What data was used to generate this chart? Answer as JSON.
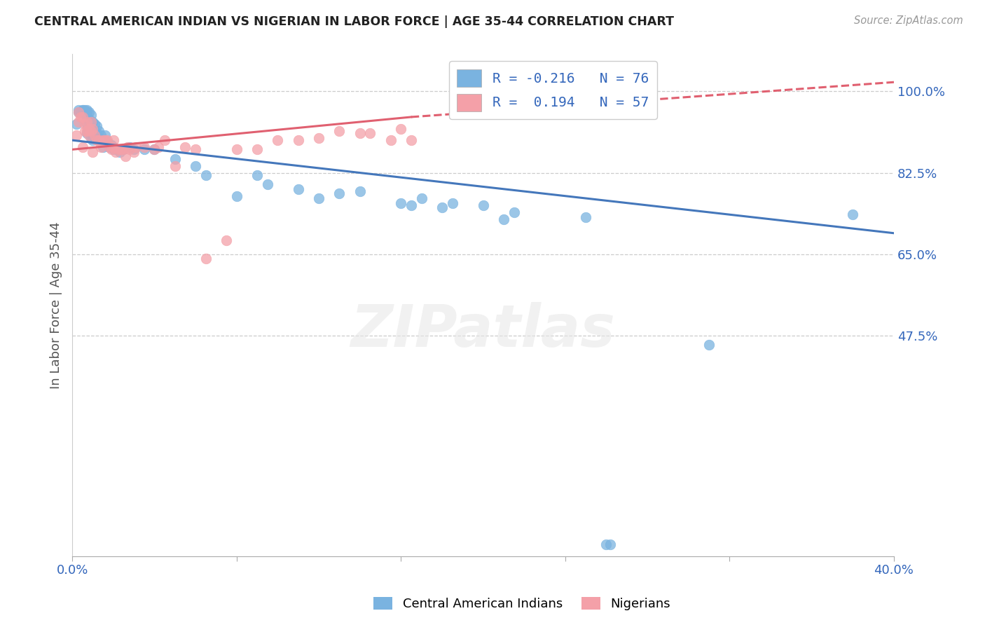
{
  "title": "CENTRAL AMERICAN INDIAN VS NIGERIAN IN LABOR FORCE | AGE 35-44 CORRELATION CHART",
  "source": "Source: ZipAtlas.com",
  "ylabel": "In Labor Force | Age 35-44",
  "watermark": "ZIPatlas",
  "blue_color": "#7ab3e0",
  "pink_color": "#f4a0a8",
  "blue_line_color": "#4477bb",
  "pink_line_color": "#e06070",
  "x_min": 0.0,
  "x_max": 0.4,
  "y_min": 0.0,
  "y_max": 1.08,
  "ytick_positions": [
    0.475,
    0.65,
    0.825,
    1.0
  ],
  "ytick_labels": [
    "47.5%",
    "65.0%",
    "82.5%",
    "100.0%"
  ],
  "grid_lines": [
    0.475,
    0.65,
    0.825,
    1.0
  ],
  "legend_blue": "R = -0.216   N = 76",
  "legend_pink": "R =  0.194   N = 57",
  "blue_trend": [
    0.0,
    0.895,
    0.4,
    0.695
  ],
  "pink_trend_solid": [
    0.0,
    0.875,
    0.165,
    0.945
  ],
  "pink_trend_dashed": [
    0.165,
    0.945,
    0.4,
    1.02
  ],
  "blue_scatter": [
    [
      0.002,
      0.93
    ],
    [
      0.003,
      0.955
    ],
    [
      0.003,
      0.96
    ],
    [
      0.004,
      0.955
    ],
    [
      0.004,
      0.955
    ],
    [
      0.005,
      0.955
    ],
    [
      0.005,
      0.955
    ],
    [
      0.005,
      0.96
    ],
    [
      0.005,
      0.96
    ],
    [
      0.005,
      0.955
    ],
    [
      0.006,
      0.96
    ],
    [
      0.006,
      0.955
    ],
    [
      0.006,
      0.955
    ],
    [
      0.007,
      0.955
    ],
    [
      0.007,
      0.96
    ],
    [
      0.007,
      0.945
    ],
    [
      0.007,
      0.93
    ],
    [
      0.007,
      0.91
    ],
    [
      0.008,
      0.955
    ],
    [
      0.008,
      0.94
    ],
    [
      0.008,
      0.935
    ],
    [
      0.008,
      0.92
    ],
    [
      0.009,
      0.95
    ],
    [
      0.009,
      0.935
    ],
    [
      0.009,
      0.92
    ],
    [
      0.009,
      0.9
    ],
    [
      0.01,
      0.935
    ],
    [
      0.01,
      0.92
    ],
    [
      0.01,
      0.91
    ],
    [
      0.01,
      0.895
    ],
    [
      0.011,
      0.93
    ],
    [
      0.011,
      0.915
    ],
    [
      0.012,
      0.925
    ],
    [
      0.012,
      0.91
    ],
    [
      0.013,
      0.915
    ],
    [
      0.013,
      0.9
    ],
    [
      0.014,
      0.905
    ],
    [
      0.014,
      0.895
    ],
    [
      0.015,
      0.895
    ],
    [
      0.015,
      0.88
    ],
    [
      0.016,
      0.905
    ],
    [
      0.016,
      0.89
    ],
    [
      0.017,
      0.89
    ],
    [
      0.018,
      0.88
    ],
    [
      0.019,
      0.885
    ],
    [
      0.02,
      0.875
    ],
    [
      0.022,
      0.875
    ],
    [
      0.023,
      0.87
    ],
    [
      0.025,
      0.875
    ],
    [
      0.028,
      0.88
    ],
    [
      0.03,
      0.875
    ],
    [
      0.035,
      0.875
    ],
    [
      0.04,
      0.875
    ],
    [
      0.05,
      0.855
    ],
    [
      0.06,
      0.84
    ],
    [
      0.065,
      0.82
    ],
    [
      0.08,
      0.775
    ],
    [
      0.09,
      0.82
    ],
    [
      0.095,
      0.8
    ],
    [
      0.11,
      0.79
    ],
    [
      0.12,
      0.77
    ],
    [
      0.13,
      0.78
    ],
    [
      0.14,
      0.785
    ],
    [
      0.16,
      0.76
    ],
    [
      0.165,
      0.755
    ],
    [
      0.17,
      0.77
    ],
    [
      0.18,
      0.75
    ],
    [
      0.185,
      0.76
    ],
    [
      0.2,
      0.755
    ],
    [
      0.21,
      0.725
    ],
    [
      0.215,
      0.74
    ],
    [
      0.25,
      0.73
    ],
    [
      0.26,
      0.025
    ],
    [
      0.262,
      0.025
    ],
    [
      0.31,
      0.455
    ],
    [
      0.38,
      0.735
    ]
  ],
  "pink_scatter": [
    [
      0.002,
      0.905
    ],
    [
      0.003,
      0.955
    ],
    [
      0.003,
      0.935
    ],
    [
      0.004,
      0.945
    ],
    [
      0.005,
      0.945
    ],
    [
      0.005,
      0.88
    ],
    [
      0.006,
      0.93
    ],
    [
      0.006,
      0.915
    ],
    [
      0.007,
      0.935
    ],
    [
      0.007,
      0.915
    ],
    [
      0.008,
      0.92
    ],
    [
      0.008,
      0.905
    ],
    [
      0.009,
      0.935
    ],
    [
      0.009,
      0.915
    ],
    [
      0.01,
      0.92
    ],
    [
      0.01,
      0.87
    ],
    [
      0.011,
      0.905
    ],
    [
      0.012,
      0.895
    ],
    [
      0.013,
      0.895
    ],
    [
      0.014,
      0.88
    ],
    [
      0.015,
      0.895
    ],
    [
      0.016,
      0.895
    ],
    [
      0.017,
      0.895
    ],
    [
      0.018,
      0.88
    ],
    [
      0.019,
      0.875
    ],
    [
      0.02,
      0.895
    ],
    [
      0.02,
      0.88
    ],
    [
      0.021,
      0.87
    ],
    [
      0.022,
      0.875
    ],
    [
      0.023,
      0.875
    ],
    [
      0.024,
      0.875
    ],
    [
      0.025,
      0.875
    ],
    [
      0.026,
      0.86
    ],
    [
      0.027,
      0.88
    ],
    [
      0.028,
      0.875
    ],
    [
      0.03,
      0.87
    ],
    [
      0.031,
      0.88
    ],
    [
      0.035,
      0.88
    ],
    [
      0.04,
      0.875
    ],
    [
      0.042,
      0.88
    ],
    [
      0.045,
      0.895
    ],
    [
      0.05,
      0.84
    ],
    [
      0.055,
      0.88
    ],
    [
      0.06,
      0.875
    ],
    [
      0.065,
      0.64
    ],
    [
      0.075,
      0.68
    ],
    [
      0.08,
      0.875
    ],
    [
      0.09,
      0.875
    ],
    [
      0.1,
      0.895
    ],
    [
      0.11,
      0.895
    ],
    [
      0.12,
      0.9
    ],
    [
      0.13,
      0.915
    ],
    [
      0.14,
      0.91
    ],
    [
      0.145,
      0.91
    ],
    [
      0.155,
      0.895
    ],
    [
      0.16,
      0.92
    ],
    [
      0.165,
      0.895
    ]
  ]
}
